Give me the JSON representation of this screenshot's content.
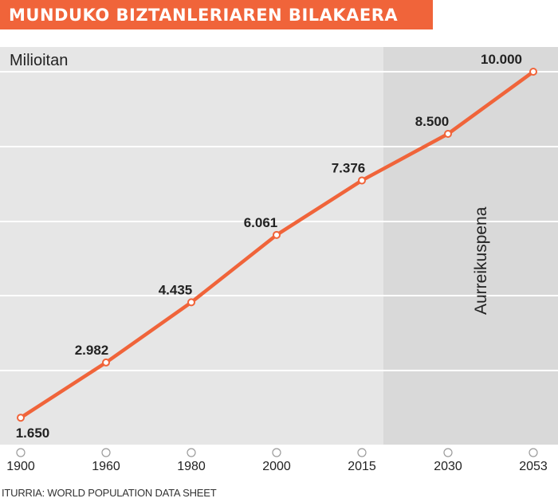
{
  "title": "MUNDUKO BIZTANLERIAREN BILAKAERA",
  "unit_label": "Milioitan",
  "projection_label": "Aurreikuspena",
  "source": "ITURRIA: WORLD POPULATION DATA SHEET",
  "colors": {
    "accent": "#f0643a",
    "panel": "#e6e6e6",
    "projection_panel": "#d9d9d9",
    "gridline": "#ffffff",
    "text": "#222222"
  },
  "chart_data": {
    "type": "line",
    "title": "MUNDUKO BIZTANLERIAREN BILAKAERA",
    "ylabel": "Milioitan",
    "xlabel": "",
    "categories": [
      "1900",
      "1960",
      "1980",
      "2000",
      "2015",
      "2030",
      "2053"
    ],
    "values": [
      1650,
      2982,
      4435,
      6061,
      7376,
      8500,
      10000
    ],
    "value_labels": [
      "1.650",
      "2.982",
      "4.435",
      "6.061",
      "7.376",
      "8.500",
      "10.000"
    ],
    "ylim": [
      1000,
      10000
    ],
    "grid": true,
    "projection_starts_after": "2015",
    "annotation": "Aurreikuspena"
  }
}
